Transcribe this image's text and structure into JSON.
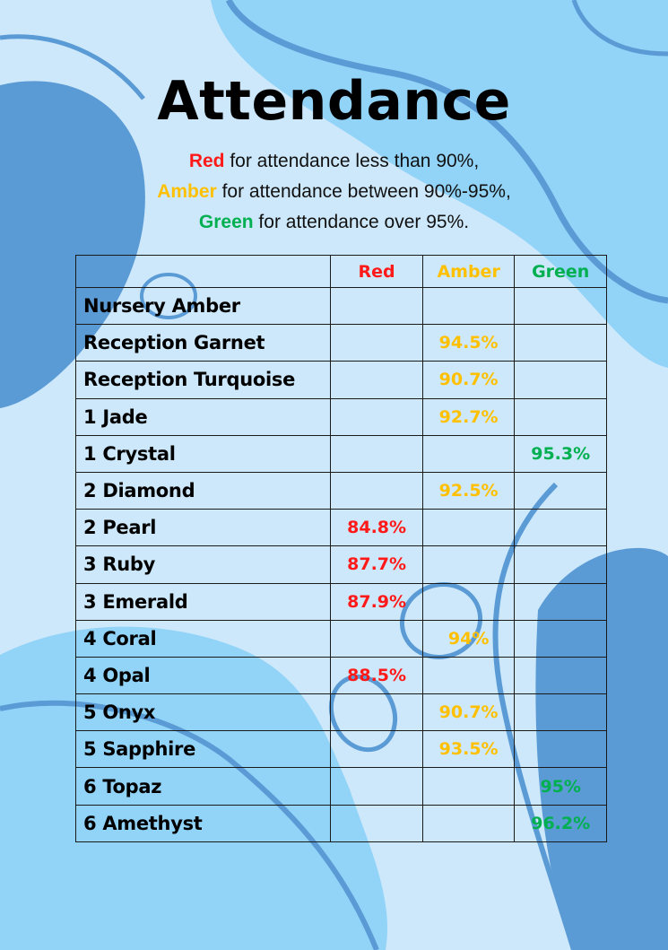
{
  "title": "Attendance",
  "legend": {
    "line1_key": "Red",
    "line1_text": " for attendance less than 90%,",
    "line2_key": "Amber",
    "line2_text": " for attendance between 90%-95%,",
    "line3_key": "Green",
    "line3_text": " for attendance over 95%."
  },
  "colors": {
    "red": "#ff1a1a",
    "amber": "#ffc000",
    "green": "#00b050"
  },
  "table": {
    "headers": {
      "red": "Red",
      "amber": "Amber",
      "green": "Green"
    },
    "rows": [
      {
        "name": "Nursery Amber",
        "red": "",
        "amber": "",
        "green": ""
      },
      {
        "name": "Reception Garnet",
        "red": "",
        "amber": "94.5%",
        "green": ""
      },
      {
        "name": "Reception Turquoise",
        "red": "",
        "amber": "90.7%",
        "green": ""
      },
      {
        "name": "1 Jade",
        "red": "",
        "amber": "92.7%",
        "green": ""
      },
      {
        "name": "1 Crystal",
        "red": "",
        "amber": "",
        "green": "95.3%"
      },
      {
        "name": "2 Diamond",
        "red": "",
        "amber": "92.5%",
        "green": ""
      },
      {
        "name": "2 Pearl",
        "red": "84.8%",
        "amber": "",
        "green": ""
      },
      {
        "name": "3 Ruby",
        "red": "87.7%",
        "amber": "",
        "green": ""
      },
      {
        "name": "3 Emerald",
        "red": "87.9%",
        "amber": "",
        "green": ""
      },
      {
        "name": "4 Coral",
        "red": "",
        "amber": "94%",
        "green": ""
      },
      {
        "name": "4 Opal",
        "red": "88.5%",
        "amber": "",
        "green": ""
      },
      {
        "name": "5 Onyx",
        "red": "",
        "amber": "90.7%",
        "green": ""
      },
      {
        "name": "5 Sapphire",
        "red": "",
        "amber": "93.5%",
        "green": ""
      },
      {
        "name": "6 Topaz",
        "red": "",
        "amber": "",
        "green": "95%"
      },
      {
        "name": "6 Amethyst",
        "red": "",
        "amber": "",
        "green": "96.2%"
      }
    ]
  }
}
